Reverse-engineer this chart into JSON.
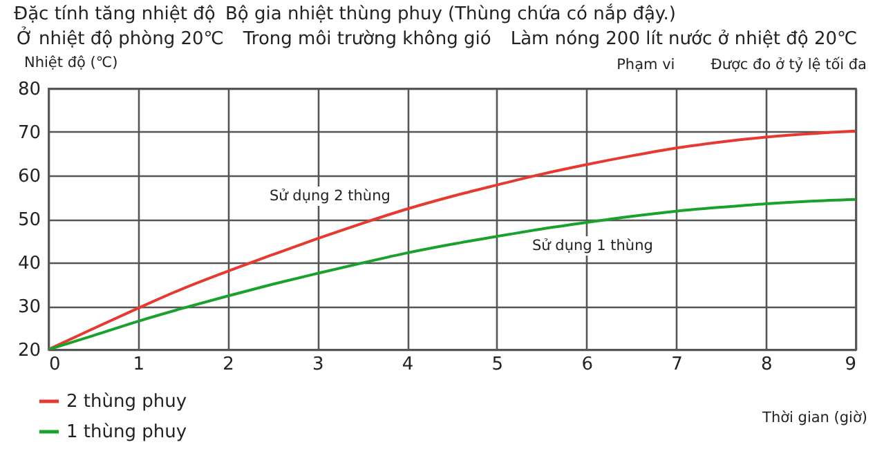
{
  "chart_data": {
    "type": "line",
    "title": "Đặc tính tăng nhiệt độ",
    "subtitle": "Bộ gia nhiệt thùng phuy (Thùng chứa có nắp đậy.)",
    "xlabel": "Thời gian (giờ)",
    "ylabel": "Nhiệt độ (℃)",
    "annotations": [
      "Ở nhiệt độ phòng 20℃",
      "Trong môi trường không gió",
      "Làm nóng 200 lít nước ở nhiệt độ 20℃",
      "Phạm vi",
      "Được đo ở tỷ lệ tối đa",
      "Sử dụng 2 thùng",
      "Sử dụng 1 thùng"
    ],
    "x": [
      0,
      0.5,
      1,
      1.5,
      2,
      2.5,
      3,
      3.5,
      4,
      4.5,
      5,
      5.5,
      6,
      6.5,
      7,
      7.5,
      8,
      8.5,
      9
    ],
    "series": [
      {
        "name": "2 thùng phuy",
        "color": "#e53a32",
        "values": [
          20,
          24.8,
          29.5,
          34,
          38,
          41.8,
          45.5,
          49,
          52.3,
          55.2,
          57.8,
          60.3,
          62.5,
          64.5,
          66.3,
          67.7,
          68.8,
          69.6,
          70.2
        ]
      },
      {
        "name": "1 thùng phuy",
        "color": "#1aa02c",
        "values": [
          20,
          23.2,
          26.5,
          29.5,
          32.3,
          35,
          37.5,
          39.9,
          42.2,
          44.2,
          46,
          47.7,
          49.2,
          50.6,
          51.8,
          52.7,
          53.5,
          54.1,
          54.5
        ]
      }
    ],
    "xlim": [
      0,
      9
    ],
    "ylim": [
      20,
      80
    ],
    "xticks": [
      0,
      1,
      2,
      3,
      4,
      5,
      6,
      7,
      8,
      9
    ],
    "yticks": [
      20,
      30,
      40,
      50,
      60,
      70,
      80
    ],
    "grid": true,
    "legend": "bottom left"
  }
}
